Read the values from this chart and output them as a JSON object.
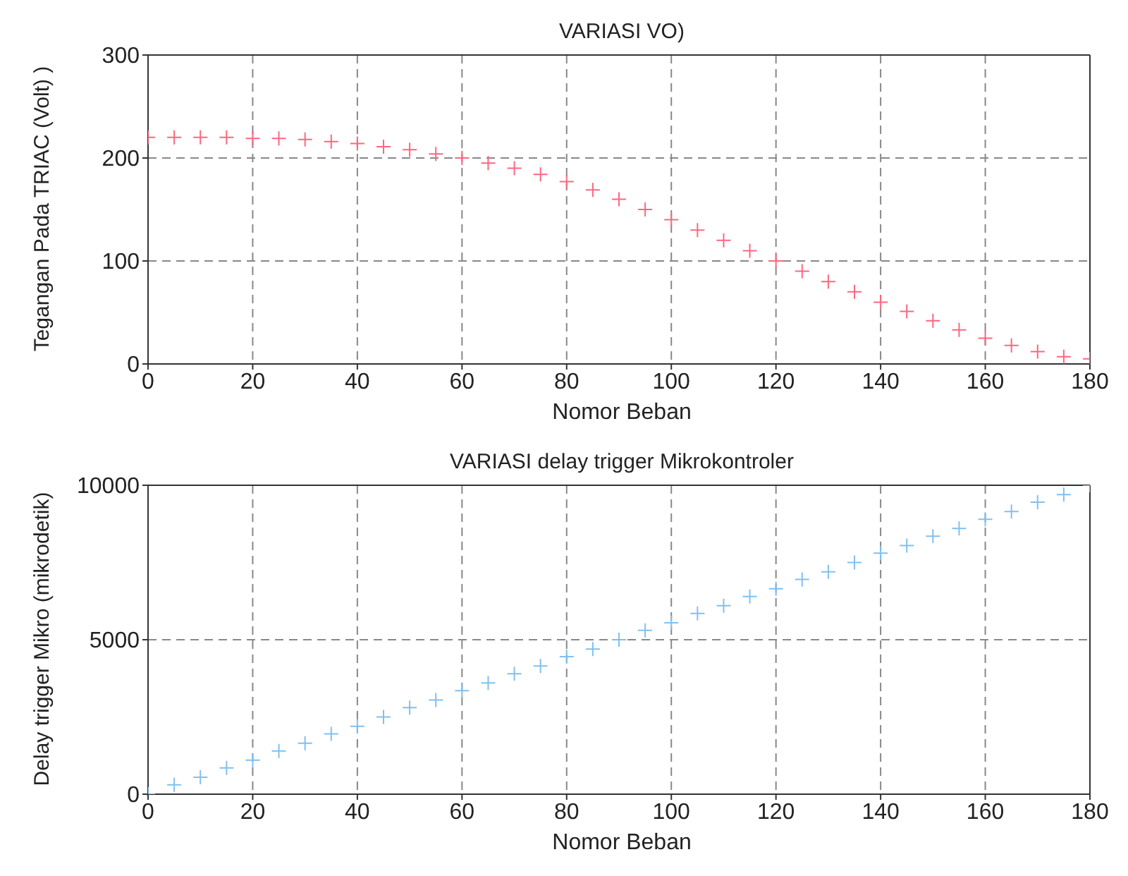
{
  "chart_data": [
    {
      "type": "scatter",
      "title": "VARIASI VO)",
      "xlabel": "Nomor Beban",
      "ylabel": "Tegangan Pada TRIAC (Volt) )",
      "x": [
        0,
        5,
        10,
        15,
        20,
        25,
        30,
        35,
        40,
        45,
        50,
        55,
        60,
        65,
        70,
        75,
        80,
        85,
        90,
        95,
        100,
        105,
        110,
        115,
        120,
        125,
        130,
        135,
        140,
        145,
        150,
        155,
        160,
        165,
        170,
        175,
        180
      ],
      "series": [
        {
          "color": "#ff6680",
          "values": [
            220,
            220,
            220,
            220,
            219,
            219,
            218,
            216,
            214,
            211,
            208,
            204,
            200,
            195,
            190,
            184,
            177,
            169,
            160,
            150,
            140,
            130,
            120,
            110,
            100,
            90,
            80,
            70,
            60,
            51,
            42,
            33,
            25,
            18,
            12,
            7,
            5
          ]
        }
      ],
      "xlim": [
        0,
        180
      ],
      "xticks": [
        0,
        20,
        40,
        60,
        80,
        100,
        120,
        140,
        160,
        180
      ],
      "ylim": [
        0,
        300
      ],
      "yticks": [
        0,
        100,
        200,
        300
      ],
      "grid": true,
      "marker": "cross"
    },
    {
      "type": "scatter",
      "title": "VARIASI delay trigger Mikrokontroler",
      "xlabel": "Nomor Beban",
      "ylabel": "Delay trigger Mikro (mikrodetik)",
      "x": [
        0,
        5,
        10,
        15,
        20,
        25,
        30,
        35,
        40,
        45,
        50,
        55,
        60,
        65,
        70,
        75,
        80,
        85,
        90,
        95,
        100,
        105,
        110,
        115,
        120,
        125,
        130,
        135,
        140,
        145,
        150,
        155,
        160,
        165,
        170,
        175,
        180
      ],
      "series": [
        {
          "color": "#80c0f0",
          "values": [
            0,
            300,
            550,
            850,
            1100,
            1400,
            1650,
            1950,
            2200,
            2500,
            2800,
            3050,
            3350,
            3600,
            3900,
            4150,
            4450,
            4700,
            5000,
            5300,
            5550,
            5850,
            6100,
            6400,
            6650,
            6950,
            7200,
            7500,
            7800,
            8050,
            8350,
            8600,
            8900,
            9150,
            9450,
            9700,
            10000
          ]
        }
      ],
      "xlim": [
        0,
        180
      ],
      "xticks": [
        0,
        20,
        40,
        60,
        80,
        100,
        120,
        140,
        160,
        180
      ],
      "ylim": [
        0,
        10000
      ],
      "yticks": [
        0,
        5000,
        10000
      ],
      "grid": true,
      "marker": "cross"
    }
  ]
}
